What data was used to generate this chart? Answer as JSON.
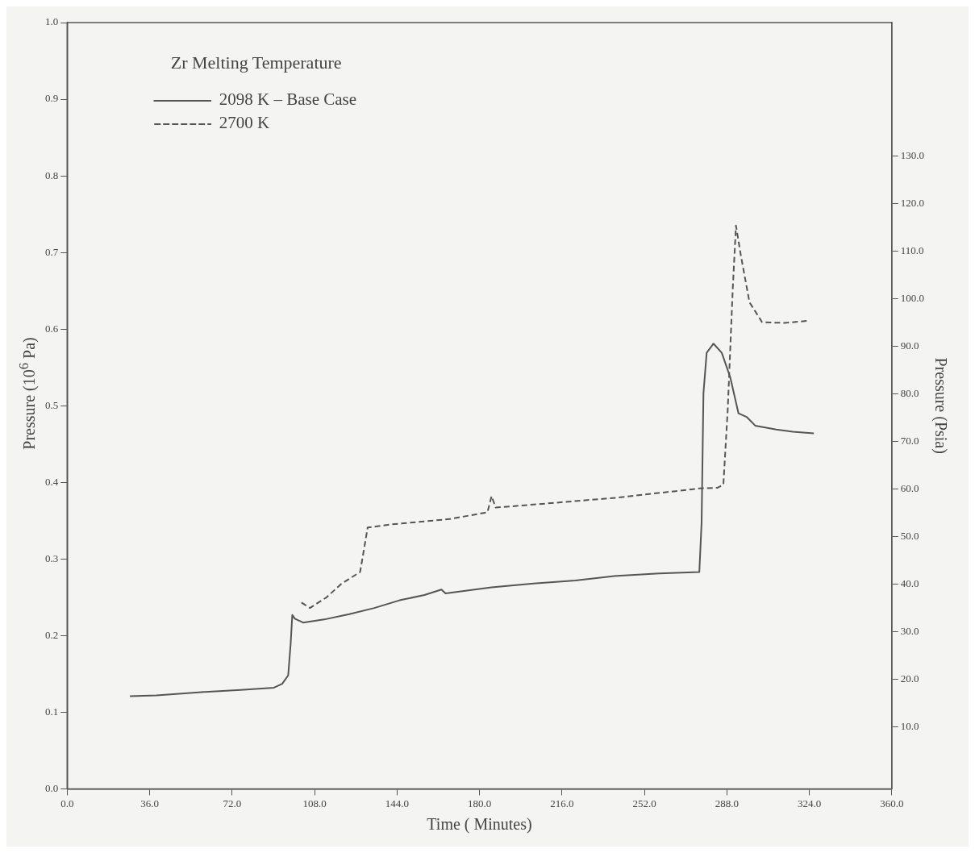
{
  "chart_data": {
    "type": "line",
    "legend_title": "Zr Melting Temperature",
    "xlabel": "Time ( Minutes)",
    "ylabel": "Pressure (10$^{6}$ Pa)",
    "y2label": "Pressure (Psia)",
    "xlim": [
      0,
      360
    ],
    "xticks": [
      {
        "value": 0,
        "label": "0.0"
      },
      {
        "value": 36,
        "label": "36.0"
      },
      {
        "value": 72,
        "label": "72.0"
      },
      {
        "value": 108,
        "label": "108.0"
      },
      {
        "value": 144,
        "label": "144.0"
      },
      {
        "value": 180,
        "label": "180.0"
      },
      {
        "value": 216,
        "label": "216.0"
      },
      {
        "value": 252,
        "label": "252.0"
      },
      {
        "value": 288,
        "label": "288.0"
      },
      {
        "value": 324,
        "label": "324.0"
      },
      {
        "value": 360,
        "label": "360.0"
      }
    ],
    "ylim": [
      0,
      1
    ],
    "yticks": [
      {
        "value": 0,
        "label": "0.0"
      },
      {
        "value": 0.1,
        "label": "0.1"
      },
      {
        "value": 0.2,
        "label": "0.2"
      },
      {
        "value": 0.3,
        "label": "0.3"
      },
      {
        "value": 0.4,
        "label": "0.4"
      },
      {
        "value": 0.5,
        "label": "0.5"
      },
      {
        "value": 0.6,
        "label": "0.6"
      },
      {
        "value": 0.7,
        "label": "0.7"
      },
      {
        "value": 0.8,
        "label": "0.8"
      },
      {
        "value": 0.9,
        "label": "0.9"
      },
      {
        "value": 1,
        "label": "1.0"
      }
    ],
    "y2lim": [
      -3,
      158
    ],
    "y2ticks": [
      {
        "value": 10,
        "label": "10.0"
      },
      {
        "value": 20,
        "label": "20.0"
      },
      {
        "value": 30,
        "label": "30.0"
      },
      {
        "value": 40,
        "label": "40.0"
      },
      {
        "value": 50,
        "label": "50.0"
      },
      {
        "value": 60,
        "label": "60.0"
      },
      {
        "value": 70,
        "label": "70.0"
      },
      {
        "value": 80,
        "label": "80.0"
      },
      {
        "value": 90,
        "label": "90.0"
      },
      {
        "value": 100,
        "label": "100.0"
      },
      {
        "value": 110,
        "label": "110.0"
      },
      {
        "value": 120,
        "label": "120.0"
      },
      {
        "value": 130,
        "label": "130.0"
      }
    ],
    "grid": false,
    "legend": "top left",
    "marker": "none",
    "series": [
      {
        "name": "2098 K – Base Case",
        "color": "#555555",
        "line_style": "solid",
        "x": [
          27.4,
          39,
          57.4,
          75.7,
          90.3,
          93.9,
          96.5,
          97.6,
          98.3,
          99.4,
          103,
          112.2,
          123.2,
          134.1,
          145.1,
          156,
          163.4,
          165.2,
          185.3,
          203.6,
          221.9,
          240.1,
          258.4,
          276,
          277,
          277.8,
          279.2,
          282.2,
          285.8,
          289.5,
          293.1,
          296.8,
          300.4,
          309.6,
          316.9,
          326
        ],
        "values": [
          0.121,
          0.122,
          0.126,
          0.129,
          0.132,
          0.137,
          0.148,
          0.19,
          0.227,
          0.222,
          0.217,
          0.221,
          0.228,
          0.236,
          0.246,
          0.253,
          0.26,
          0.255,
          0.263,
          0.268,
          0.272,
          0.278,
          0.281,
          0.283,
          0.348,
          0.516,
          0.569,
          0.581,
          0.569,
          0.537,
          0.49,
          0.485,
          0.474,
          0.469,
          0.466,
          0.464
        ]
      },
      {
        "name": "2700 K",
        "color": "#555555",
        "line_style": "dashed",
        "x": [
          102.3,
          106,
          113.3,
          119.5,
          127.9,
          129.4,
          131.2,
          141.4,
          167,
          183.5,
          185.3,
          187.1,
          203.6,
          240.1,
          276,
          284,
          286.5,
          288.4,
          290.6,
          292,
          294.2,
          297.9,
          303.4,
          313.2,
          324.2
        ],
        "values": [
          0.243,
          0.236,
          0.25,
          0.267,
          0.283,
          0.309,
          0.341,
          0.345,
          0.352,
          0.361,
          0.382,
          0.367,
          0.371,
          0.38,
          0.392,
          0.393,
          0.397,
          0.495,
          0.653,
          0.735,
          0.695,
          0.635,
          0.609,
          0.608,
          0.611
        ]
      }
    ]
  }
}
